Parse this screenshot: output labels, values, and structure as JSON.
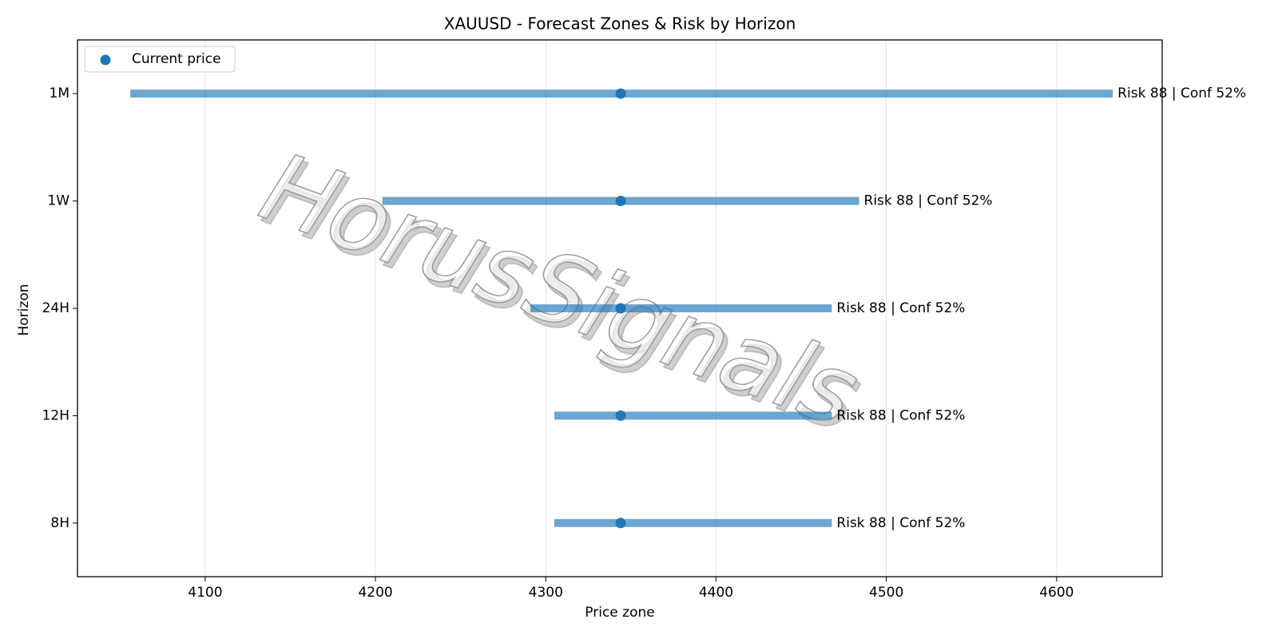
{
  "chart_data": {
    "type": "range",
    "title": "XAUUSD - Forecast Zones & Risk by Horizon",
    "xlabel": "Price zone",
    "ylabel": "Horizon",
    "watermark": "HorusSignals",
    "categories": [
      "8H",
      "12H",
      "24H",
      "1W",
      "1M"
    ],
    "low": [
      4305,
      4305,
      4291,
      4204,
      4056
    ],
    "high": [
      4468,
      4468,
      4468,
      4484,
      4633
    ],
    "range_color": "#1f77b4",
    "series": [
      {
        "name": "Current price",
        "color": "#1f77b4",
        "values": [
          4344,
          4344,
          4344,
          4344,
          4344
        ]
      }
    ],
    "labels": [
      "Risk 88 | Conf 52%",
      "Risk 88 | Conf 52%",
      "Risk 88 | Conf 52%",
      "Risk 88 | Conf 52%",
      "Risk 88 | Conf 52%"
    ],
    "xlim": [
      4025,
      4662
    ],
    "xticks": [
      4100,
      4200,
      4300,
      4400,
      4500,
      4600
    ],
    "grid": true,
    "legend": "upper left"
  }
}
